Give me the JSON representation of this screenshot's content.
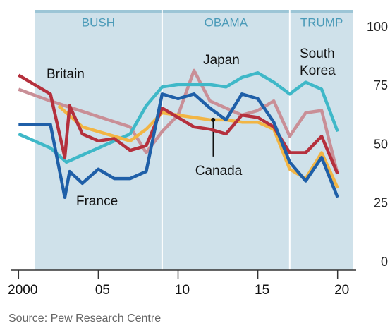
{
  "chart_data": {
    "type": "line",
    "source": "Source: Pew Research Centre",
    "eras": [
      {
        "label": "BUSH",
        "start": 2001,
        "end": 2009
      },
      {
        "label": "OBAMA",
        "start": 2009,
        "end": 2017
      },
      {
        "label": "TRUMP",
        "start": 2017,
        "end": 2021
      }
    ],
    "xlim": [
      1999.5,
      2020.5
    ],
    "xticks": [
      2000,
      {
        "value": 2005,
        "label": "05"
      },
      {
        "value": 2010,
        "label": "10"
      },
      {
        "value": 2015,
        "label": "15"
      },
      {
        "value": 2020,
        "label": "20"
      }
    ],
    "ylim": [
      0,
      100
    ],
    "yticks": [
      0,
      25,
      50,
      75,
      100
    ],
    "grid": false,
    "series": [
      {
        "color": "#f2b544",
        "x": [
          2002.5,
          2004,
          2005,
          2006,
          2007,
          2008,
          2009,
          2010,
          2011,
          2012,
          2013,
          2014,
          2015,
          2016,
          2017,
          2018,
          2019,
          2020
        ],
        "values": [
          70,
          61,
          59,
          57,
          55,
          60,
          67,
          66,
          65,
          64,
          64,
          63,
          63,
          60,
          43,
          39,
          50,
          35
        ]
      },
      {
        "name": "Canada",
        "color": "#f2b544",
        "x": [
          2012.2
        ],
        "values": [
          64
        ]
      },
      {
        "name": "Japan",
        "color": "#c98f97",
        "x": [
          2000,
          2002,
          2007,
          2008,
          2009,
          2010,
          2011,
          2012,
          2013,
          2014,
          2015,
          2016,
          2017,
          2018,
          2019,
          2020
        ],
        "values": [
          77,
          72,
          61,
          50,
          59,
          66,
          85,
          72,
          69,
          66,
          68,
          72,
          57,
          67,
          68,
          41
        ]
      },
      {
        "name": "South Korea",
        "color": "#3fb8c8",
        "x": [
          2000,
          2002,
          2003,
          2007,
          2008,
          2009,
          2010,
          2011,
          2012,
          2013,
          2014,
          2015,
          2016,
          2017,
          2018,
          2019,
          2020
        ],
        "values": [
          58,
          52,
          46,
          58,
          70,
          78,
          79,
          79,
          79,
          78,
          82,
          84,
          80,
          75,
          80,
          77,
          59
        ]
      },
      {
        "name": "Britain",
        "color": "#b5303d",
        "x": [
          2000,
          2002,
          2002.9,
          2003.2,
          2004,
          2005,
          2006,
          2007,
          2008,
          2009,
          2010,
          2011,
          2012,
          2013,
          2014,
          2015,
          2016,
          2017,
          2018,
          2019,
          2020
        ],
        "values": [
          83,
          75,
          48,
          70,
          58,
          55,
          56,
          51,
          53,
          69,
          65,
          61,
          60,
          58,
          66,
          65,
          61,
          50,
          50,
          57,
          41
        ]
      },
      {
        "name": "France",
        "color": "#1f5fa8",
        "x": [
          2000,
          2002,
          2002.9,
          2003.2,
          2004,
          2005,
          2006,
          2007,
          2008,
          2009,
          2010,
          2011,
          2012,
          2013,
          2014,
          2015,
          2016,
          2017,
          2018,
          2019,
          2020
        ],
        "values": [
          62,
          62,
          31,
          42,
          37,
          43,
          39,
          39,
          42,
          75,
          73,
          75,
          69,
          64,
          75,
          73,
          63,
          46,
          38,
          48,
          31
        ]
      }
    ]
  }
}
